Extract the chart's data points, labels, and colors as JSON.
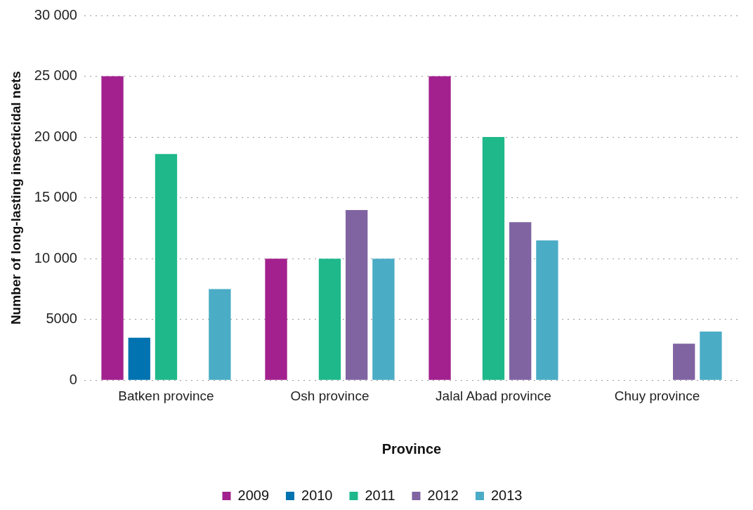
{
  "chart_data": {
    "type": "bar",
    "xlabel": "Province",
    "ylabel": "Number of long-lasting insecticidal nets",
    "categories": [
      "Batken province",
      "Osh province",
      "Jalal Abad province",
      "Chuy province"
    ],
    "series": [
      {
        "name": "2009",
        "color": "#a3218e",
        "values": [
          25000,
          10000,
          25000,
          null
        ]
      },
      {
        "name": "2010",
        "color": "#0073b0",
        "values": [
          3500,
          null,
          null,
          null
        ]
      },
      {
        "name": "2011",
        "color": "#1fb88a",
        "values": [
          18600,
          10000,
          20000,
          null
        ]
      },
      {
        "name": "2012",
        "color": "#8064a2",
        "values": [
          null,
          14000,
          13000,
          3000
        ]
      },
      {
        "name": "2013",
        "color": "#4bacc6",
        "values": [
          7500,
          10000,
          11500,
          4000
        ]
      }
    ],
    "ylim": [
      0,
      30000
    ],
    "yticks": [
      0,
      5000,
      {
        "value": 10000,
        "label": "10 000"
      },
      {
        "value": 15000,
        "label": "15 000"
      },
      {
        "value": 20000,
        "label": "20 000"
      },
      {
        "value": 25000,
        "label": "25 000"
      },
      {
        "value": 30000,
        "label": "30 000"
      }
    ],
    "grid": "y",
    "legend": "bottom"
  }
}
